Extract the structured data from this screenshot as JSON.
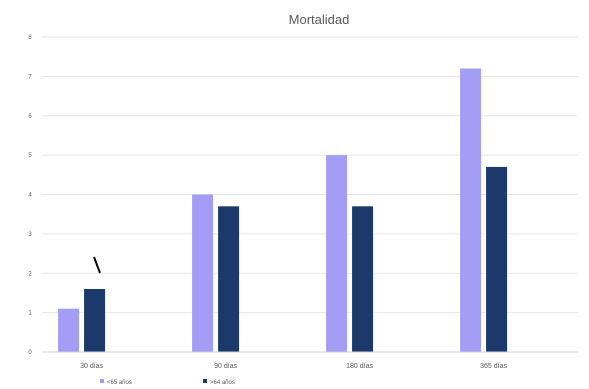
{
  "chart_data": {
    "type": "bar",
    "title": "Mortalidad",
    "categories": [
      "30 días",
      "90 días",
      "180 días",
      "365 días"
    ],
    "series": [
      {
        "name": "<65 años",
        "values": [
          1.1,
          4.0,
          5.0,
          7.2
        ],
        "color": "#a49df5"
      },
      {
        "name": ">64 años",
        "values": [
          1.6,
          3.7,
          3.7,
          4.7
        ],
        "color": "#1b3a6b"
      }
    ],
    "yticks": [
      "0",
      "1",
      "2",
      "3",
      "4",
      "5",
      "6",
      "7",
      "8"
    ],
    "ylim": [
      0,
      8
    ],
    "grid": true,
    "legend_position": "bottom-left",
    "annotation": {
      "type": "line",
      "color": "#000000",
      "near_category": "30 días"
    }
  }
}
